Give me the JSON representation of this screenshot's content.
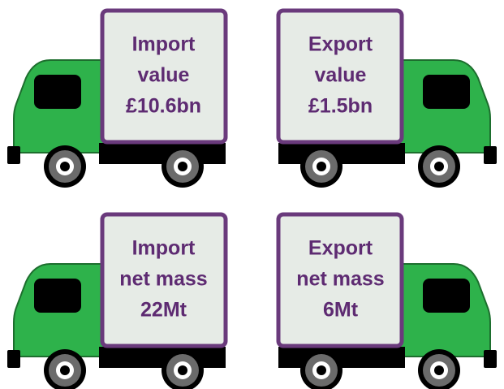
{
  "trucks": [
    {
      "lines": [
        "Import",
        "value",
        "£10.6bn"
      ]
    },
    {
      "lines": [
        "Export",
        "value",
        "£1.5bn"
      ]
    },
    {
      "lines": [
        "Import",
        "net mass",
        "22Mt"
      ]
    },
    {
      "lines": [
        "Export",
        "net mass",
        "6Mt"
      ]
    }
  ]
}
